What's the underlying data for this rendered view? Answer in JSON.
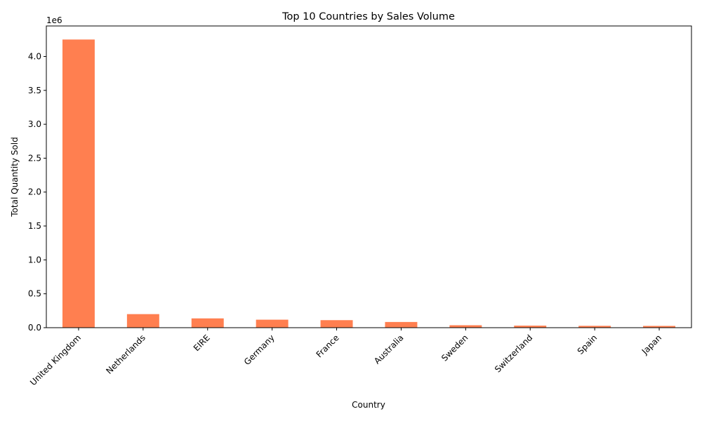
{
  "chart_data": {
    "type": "bar",
    "title": "Top 10 Countries by Sales Volume",
    "xlabel": "Country",
    "ylabel": "Total Quantity Sold",
    "offset_label": "1e6",
    "categories": [
      "United Kingdom",
      "Netherlands",
      "EIRE",
      "Germany",
      "France",
      "Australia",
      "Sweden",
      "Switzerland",
      "Spain",
      "Japan"
    ],
    "values": [
      4250000,
      200000,
      137000,
      118000,
      111000,
      84000,
      36000,
      30000,
      27000,
      26000
    ],
    "ylim": [
      0,
      4450000
    ],
    "yticks": [
      0,
      500000,
      1000000,
      1500000,
      2000000,
      2500000,
      3000000,
      3500000,
      4000000
    ],
    "ytick_labels": [
      "0.0",
      "0.5",
      "1.0",
      "1.5",
      "2.0",
      "2.5",
      "3.0",
      "3.5",
      "4.0"
    ],
    "bar_color": "#ff7f50",
    "grid": false,
    "legend": "none"
  }
}
